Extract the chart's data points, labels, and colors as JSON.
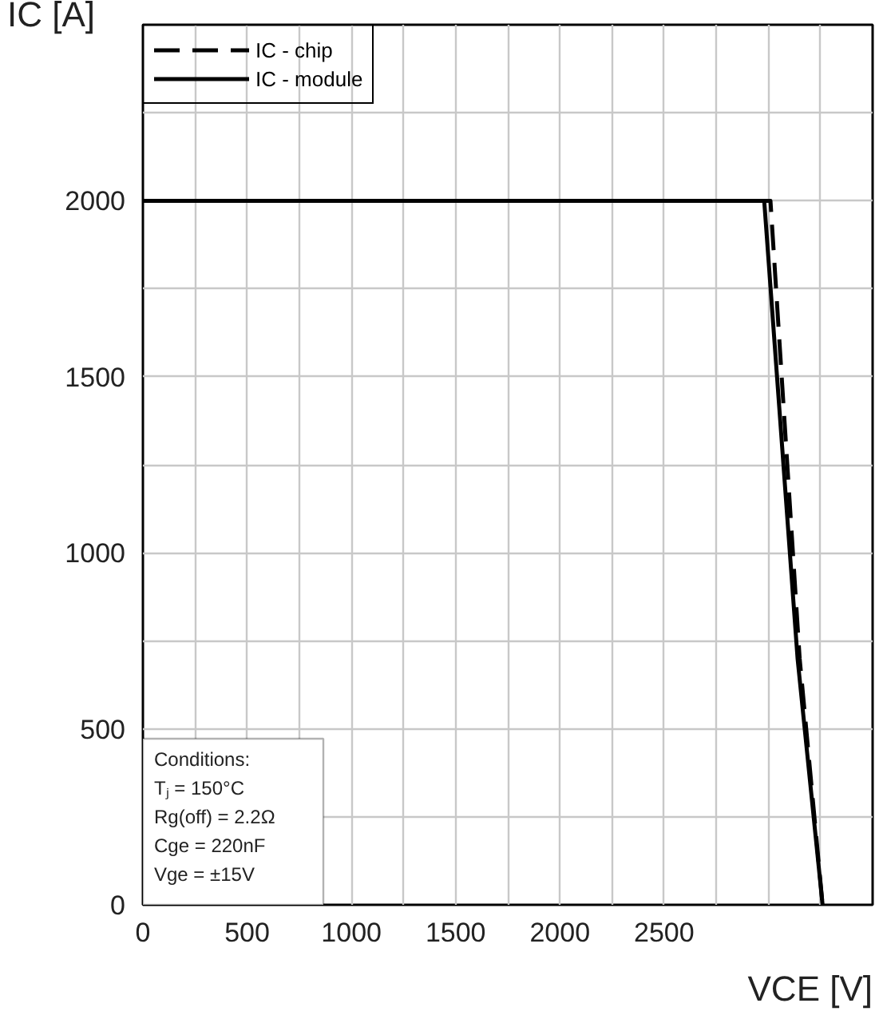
{
  "chart_data": {
    "type": "line",
    "xlabel": "VCE [V]",
    "ylabel": "IC [A]",
    "xlim": [
      0,
      3500
    ],
    "ylim": [
      0,
      2500
    ],
    "xticks": [
      0,
      {
        "value": 250,
        "label": null
      },
      500,
      {
        "value": 750,
        "label": null
      },
      1000,
      {
        "value": 1250,
        "label": null
      },
      1500,
      {
        "value": 1750,
        "label": null
      },
      2000,
      {
        "value": 2250,
        "label": null
      },
      2500,
      {
        "value": 2750,
        "label": null
      },
      {
        "value": 3000,
        "label": null
      },
      {
        "value": 3250,
        "label": null
      },
      {
        "value": 3500,
        "label": null
      }
    ],
    "yticks": [
      0,
      {
        "value": 250,
        "label": null
      },
      500,
      {
        "value": 750,
        "label": null
      },
      1000,
      {
        "value": 1250,
        "label": null
      },
      1500,
      {
        "value": 1750,
        "label": null
      },
      2000,
      {
        "value": 2250,
        "label": null
      },
      {
        "value": 2500,
        "label": null
      }
    ],
    "grid": true,
    "legend": "top left",
    "series": [
      {
        "name": "IC - chip",
        "color": "#000000",
        "line_style": "dashed",
        "x": [
          0,
          3010,
          3150,
          3260
        ],
        "values": [
          2000,
          2000,
          700,
          0
        ]
      },
      {
        "name": "IC - module",
        "color": "#000000",
        "line_style": "solid",
        "x": [
          0,
          2980,
          3140,
          3260
        ],
        "values": [
          2000,
          2000,
          700,
          0
        ]
      }
    ],
    "annotations": [
      "Conditions:",
      "Tⱼ = 150°C",
      "Rg(off) = 2.2Ω",
      "Cge = 220nF",
      "Vge = ±15V"
    ]
  }
}
